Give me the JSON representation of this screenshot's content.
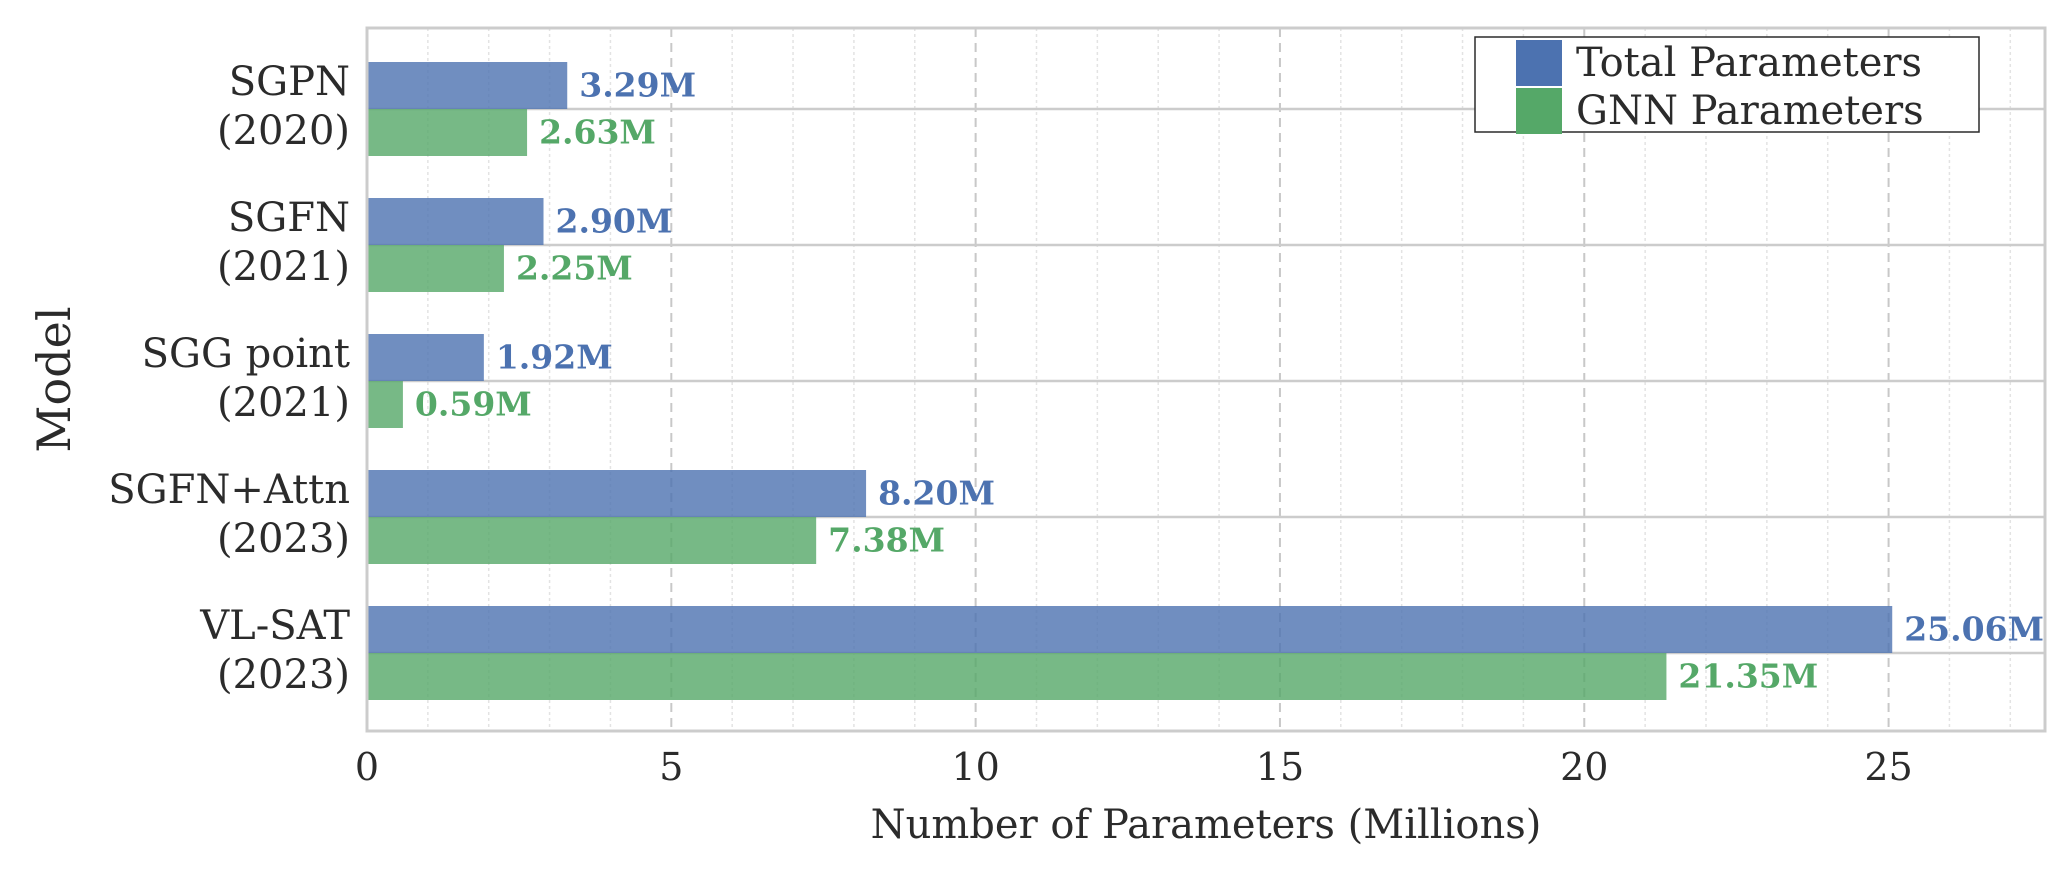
{
  "chart_data": {
    "type": "bar",
    "orientation": "horizontal",
    "categories": [
      [
        "SGPN",
        "(2020)"
      ],
      [
        "SGFN",
        "(2021)"
      ],
      [
        "SGG point",
        "(2021)"
      ],
      [
        "SGFN+Attn",
        "(2023)"
      ],
      [
        "VL-SAT",
        "(2023)"
      ]
    ],
    "series": [
      {
        "name": "Total Parameters",
        "color": "#4C72B0",
        "values": [
          3.29,
          2.9,
          1.92,
          8.2,
          25.06
        ],
        "labels": [
          "3.29M",
          "2.90M",
          "1.92M",
          "8.20M",
          "25.06M"
        ]
      },
      {
        "name": "GNN Parameters",
        "color": "#55A868",
        "values": [
          2.63,
          2.25,
          0.59,
          7.38,
          21.35
        ],
        "labels": [
          "2.63M",
          "2.25M",
          "0.59M",
          "7.38M",
          "21.35M"
        ]
      }
    ],
    "xlabel": "Number of Parameters (Millions)",
    "ylabel": "Model",
    "xlim": [
      0,
      27.57
    ],
    "xticks": [
      0,
      5,
      10,
      15,
      20,
      25
    ],
    "xtick_labels": [
      "0",
      "5",
      "10",
      "15",
      "20",
      "25"
    ],
    "grid": true,
    "legend_position": "top-right"
  }
}
